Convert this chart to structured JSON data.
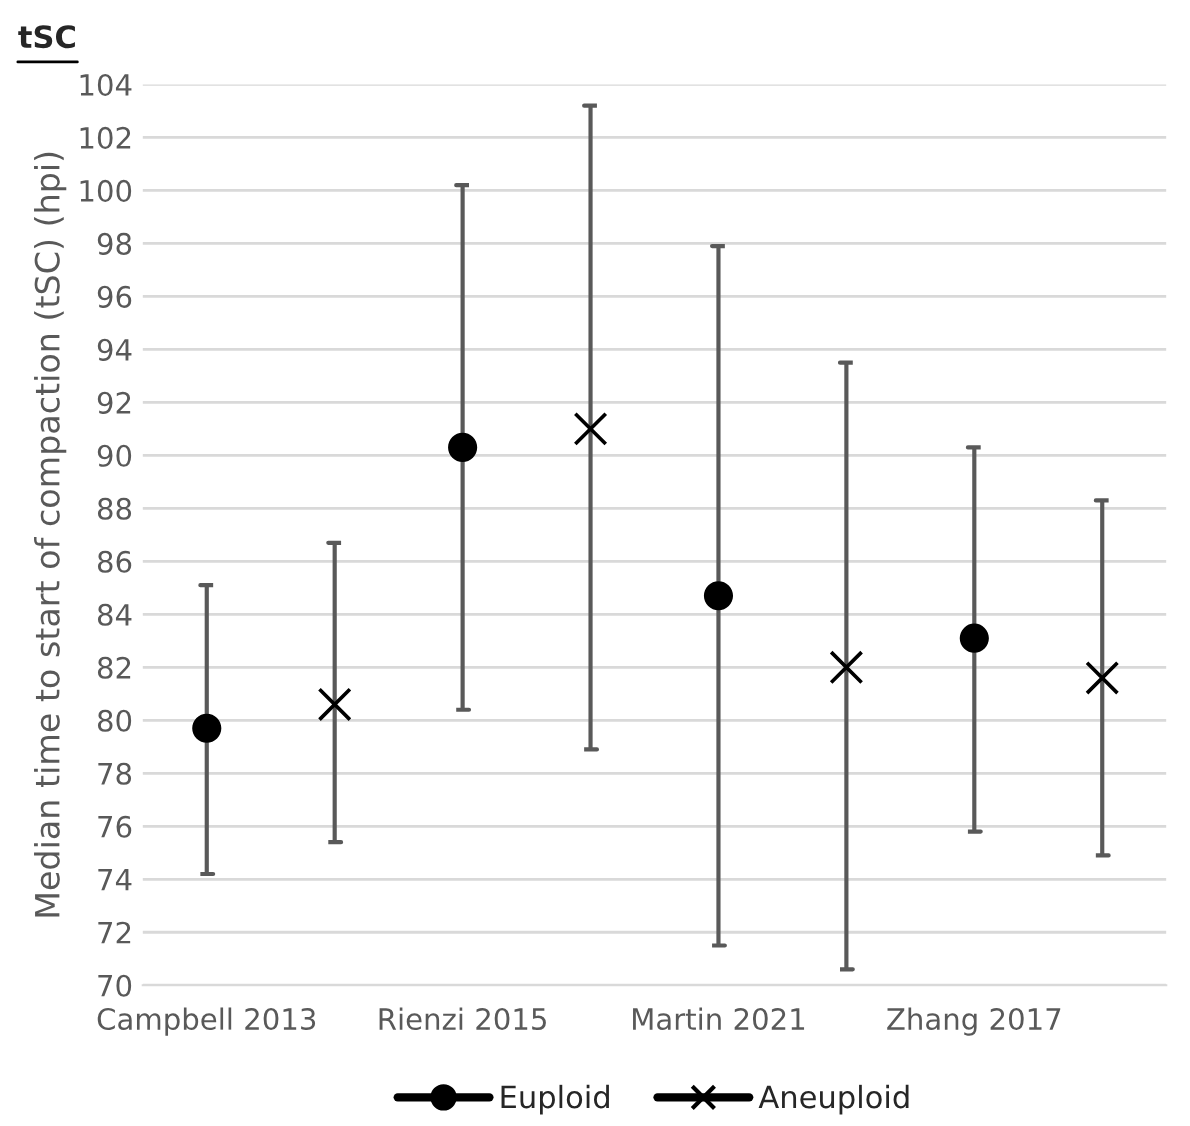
{
  "chart_data": {
    "type": "scatter",
    "title": "tSC",
    "ylabel": "Median time to start of compaction (tSC) (hpi)",
    "categories": [
      "Campbell 2013",
      null,
      "Rienzi 2015",
      null,
      "Martin 2021",
      null,
      "Zhang 2017",
      null
    ],
    "series": [
      {
        "name": "Euploid",
        "color": "#000000",
        "marker": "circle",
        "values": [
          79.7,
          null,
          90.3,
          null,
          84.7,
          null,
          83.1,
          null
        ],
        "errors": [
          [
            74.2,
            85.1
          ],
          null,
          [
            80.4,
            100.2
          ],
          null,
          [
            71.5,
            97.9
          ],
          null,
          [
            75.8,
            90.3
          ],
          null
        ]
      },
      {
        "name": "Aneuploid",
        "color": "#000000",
        "marker": "cross",
        "values": [
          null,
          80.6,
          null,
          91.0,
          null,
          82.0,
          null,
          81.6
        ],
        "errors": [
          null,
          [
            75.4,
            86.7
          ],
          null,
          [
            78.9,
            103.2
          ],
          null,
          [
            70.6,
            93.5
          ],
          null,
          [
            74.9,
            88.3
          ]
        ]
      }
    ],
    "ylim": [
      70,
      104
    ],
    "yticks": [
      70,
      72,
      74,
      76,
      78,
      80,
      82,
      84,
      86,
      88,
      90,
      92,
      94,
      96,
      98,
      100,
      102,
      104
    ],
    "grid": "y",
    "legend": "bottom"
  }
}
